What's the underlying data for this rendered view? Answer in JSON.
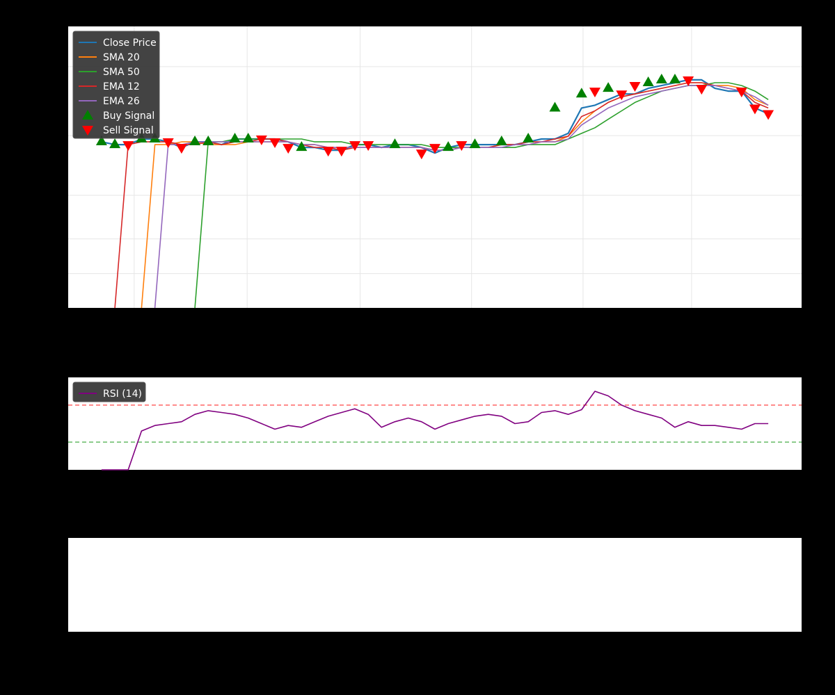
{
  "figure": {
    "background": "#000000",
    "panel_background": "#ffffff"
  },
  "chart_data": [
    {
      "type": "line",
      "panel": "price",
      "grid": true,
      "legend_position": "top-left",
      "x": [
        0,
        0.02,
        0.04,
        0.06,
        0.08,
        0.1,
        0.12,
        0.14,
        0.16,
        0.18,
        0.2,
        0.22,
        0.24,
        0.26,
        0.28,
        0.3,
        0.32,
        0.34,
        0.36,
        0.38,
        0.4,
        0.42,
        0.44,
        0.46,
        0.48,
        0.5,
        0.52,
        0.54,
        0.56,
        0.58,
        0.6,
        0.62,
        0.64,
        0.66,
        0.68,
        0.7,
        0.72,
        0.74,
        0.76,
        0.78,
        0.8,
        0.82,
        0.84,
        0.86,
        0.88,
        0.9,
        0.92,
        0.94,
        0.96,
        0.98,
        1.0
      ],
      "xlim": [
        -0.05,
        1.05
      ],
      "ylim": [
        0,
        1
      ],
      "series": [
        {
          "name": "Close Price",
          "color": "#1f77b4",
          "width": 2.2,
          "values": [
            0.59,
            0.58,
            0.58,
            0.6,
            0.6,
            0.59,
            0.57,
            0.59,
            0.59,
            0.58,
            0.6,
            0.6,
            0.6,
            0.6,
            0.59,
            0.57,
            0.57,
            0.56,
            0.56,
            0.58,
            0.58,
            0.57,
            0.58,
            0.58,
            0.57,
            0.55,
            0.57,
            0.58,
            0.58,
            0.58,
            0.58,
            0.58,
            0.59,
            0.6,
            0.6,
            0.62,
            0.71,
            0.72,
            0.74,
            0.76,
            0.76,
            0.78,
            0.79,
            0.8,
            0.81,
            0.81,
            0.78,
            0.77,
            0.77,
            0.71,
            0.69
          ]
        },
        {
          "name": "SMA 20",
          "color": "#ff7f0e",
          "width": 1.6,
          "values": [
            null,
            null,
            null,
            0.0,
            0.58,
            0.58,
            0.59,
            0.59,
            0.58,
            0.58,
            0.58,
            0.59,
            0.59,
            0.59,
            0.59,
            0.58,
            0.58,
            0.57,
            0.57,
            0.57,
            0.57,
            0.57,
            0.57,
            0.57,
            0.57,
            0.56,
            0.56,
            0.57,
            0.57,
            0.57,
            0.58,
            0.58,
            0.58,
            0.59,
            0.59,
            0.61,
            0.66,
            0.7,
            0.73,
            0.75,
            0.76,
            0.77,
            0.78,
            0.79,
            0.8,
            0.8,
            0.79,
            0.79,
            0.78,
            0.74,
            0.72
          ]
        },
        {
          "name": "SMA 50",
          "color": "#2ca02c",
          "width": 1.6,
          "values": [
            null,
            null,
            null,
            null,
            null,
            null,
            null,
            0.0,
            0.59,
            0.59,
            0.6,
            0.6,
            0.6,
            0.6,
            0.6,
            0.6,
            0.59,
            0.59,
            0.59,
            0.58,
            0.58,
            0.58,
            0.58,
            0.58,
            0.58,
            0.57,
            0.57,
            0.57,
            0.57,
            0.57,
            0.57,
            0.57,
            0.58,
            0.58,
            0.58,
            0.6,
            0.62,
            0.64,
            0.67,
            0.7,
            0.73,
            0.75,
            0.77,
            0.78,
            0.79,
            0.79,
            0.8,
            0.8,
            0.79,
            0.77,
            0.74
          ]
        },
        {
          "name": "EMA 12",
          "color": "#d62728",
          "width": 1.6,
          "values": [
            null,
            0.0,
            0.58,
            0.59,
            0.59,
            0.59,
            0.58,
            0.58,
            0.59,
            0.58,
            0.59,
            0.59,
            0.6,
            0.6,
            0.59,
            0.58,
            0.57,
            0.57,
            0.56,
            0.57,
            0.57,
            0.57,
            0.57,
            0.57,
            0.57,
            0.56,
            0.56,
            0.57,
            0.57,
            0.57,
            0.58,
            0.58,
            0.59,
            0.59,
            0.6,
            0.61,
            0.68,
            0.7,
            0.73,
            0.75,
            0.76,
            0.77,
            0.78,
            0.79,
            0.8,
            0.8,
            0.79,
            0.78,
            0.77,
            0.73,
            0.71
          ]
        },
        {
          "name": "EMA 26",
          "color": "#9467bd",
          "width": 1.6,
          "values": [
            null,
            null,
            null,
            null,
            0.0,
            0.58,
            0.58,
            0.59,
            0.59,
            0.59,
            0.59,
            0.59,
            0.59,
            0.59,
            0.59,
            0.58,
            0.58,
            0.57,
            0.57,
            0.57,
            0.57,
            0.57,
            0.57,
            0.57,
            0.57,
            0.56,
            0.56,
            0.57,
            0.57,
            0.57,
            0.57,
            0.58,
            0.58,
            0.59,
            0.59,
            0.6,
            0.65,
            0.68,
            0.71,
            0.73,
            0.75,
            0.76,
            0.77,
            0.78,
            0.79,
            0.79,
            0.79,
            0.78,
            0.77,
            0.75,
            0.72
          ]
        }
      ],
      "signals": [
        {
          "name": "Buy Signal",
          "color": "#008000",
          "marker": "triangle-up",
          "points": [
            [
              0.0,
              0.59
            ],
            [
              0.02,
              0.58
            ],
            [
              0.06,
              0.6
            ],
            [
              0.08,
              0.6
            ],
            [
              0.14,
              0.59
            ],
            [
              0.16,
              0.59
            ],
            [
              0.2,
              0.6
            ],
            [
              0.22,
              0.6
            ],
            [
              0.3,
              0.57
            ],
            [
              0.44,
              0.58
            ],
            [
              0.52,
              0.57
            ],
            [
              0.56,
              0.58
            ],
            [
              0.6,
              0.59
            ],
            [
              0.64,
              0.6
            ],
            [
              0.68,
              0.71
            ],
            [
              0.72,
              0.76
            ],
            [
              0.76,
              0.78
            ],
            [
              0.82,
              0.8
            ],
            [
              0.84,
              0.81
            ],
            [
              0.86,
              0.81
            ]
          ]
        },
        {
          "name": "Sell Signal",
          "color": "#ff0000",
          "marker": "triangle-down",
          "points": [
            [
              0.04,
              0.58
            ],
            [
              0.1,
              0.59
            ],
            [
              0.12,
              0.57
            ],
            [
              0.24,
              0.6
            ],
            [
              0.26,
              0.59
            ],
            [
              0.28,
              0.57
            ],
            [
              0.34,
              0.56
            ],
            [
              0.36,
              0.56
            ],
            [
              0.38,
              0.58
            ],
            [
              0.4,
              0.58
            ],
            [
              0.48,
              0.55
            ],
            [
              0.5,
              0.57
            ],
            [
              0.54,
              0.58
            ],
            [
              0.74,
              0.77
            ],
            [
              0.78,
              0.76
            ],
            [
              0.8,
              0.79
            ],
            [
              0.88,
              0.81
            ],
            [
              0.9,
              0.78
            ],
            [
              0.96,
              0.77
            ],
            [
              0.98,
              0.71
            ],
            [
              1.0,
              0.69
            ]
          ]
        }
      ],
      "legend": [
        "Close Price",
        "SMA 20",
        "SMA 50",
        "EMA 12",
        "EMA 26",
        "Buy Signal",
        "Sell Signal"
      ]
    },
    {
      "type": "line",
      "panel": "rsi",
      "grid": false,
      "legend_position": "top-left",
      "x": [
        0,
        0.02,
        0.04,
        0.06,
        0.08,
        0.1,
        0.12,
        0.14,
        0.16,
        0.18,
        0.2,
        0.22,
        0.24,
        0.26,
        0.28,
        0.3,
        0.32,
        0.34,
        0.36,
        0.38,
        0.4,
        0.42,
        0.44,
        0.46,
        0.48,
        0.5,
        0.52,
        0.54,
        0.56,
        0.58,
        0.6,
        0.62,
        0.64,
        0.66,
        0.68,
        0.7,
        0.72,
        0.74,
        0.76,
        0.78,
        0.8,
        0.82,
        0.84,
        0.86,
        0.88,
        0.9,
        0.92,
        0.94,
        0.96,
        0.98,
        1.0
      ],
      "xlim": [
        -0.05,
        1.05
      ],
      "ylim": [
        0,
        100
      ],
      "reference_lines": [
        {
          "value": 70,
          "color": "#ff6666",
          "style": "dashed"
        },
        {
          "value": 30,
          "color": "#66bb66",
          "style": "dashed"
        }
      ],
      "series": [
        {
          "name": "RSI (14)",
          "color": "#800080",
          "width": 1.6,
          "values": [
            0,
            0,
            0,
            42,
            48,
            50,
            52,
            60,
            64,
            62,
            60,
            56,
            50,
            44,
            48,
            46,
            52,
            58,
            62,
            66,
            60,
            46,
            52,
            56,
            52,
            44,
            50,
            54,
            58,
            60,
            58,
            50,
            52,
            62,
            64,
            60,
            65,
            85,
            80,
            70,
            64,
            60,
            56,
            46,
            52,
            48,
            48,
            46,
            44,
            50,
            50
          ]
        }
      ],
      "legend": [
        "RSI (14)"
      ]
    },
    {
      "type": "line",
      "panel": "empty",
      "series": []
    }
  ]
}
